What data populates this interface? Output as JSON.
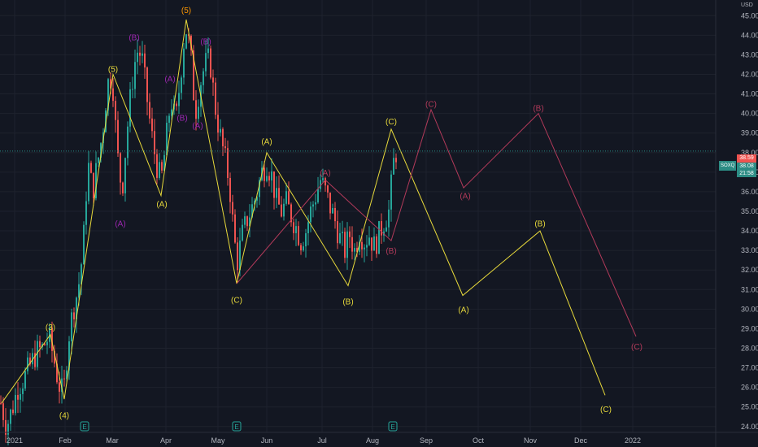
{
  "chart_data": {
    "type": "candlestick",
    "currency": "USD",
    "x_ticks": [
      "2021",
      "Feb",
      "Mar",
      "Apr",
      "May",
      "Jun",
      "Jul",
      "Aug",
      "Sep",
      "Oct",
      "Nov",
      "Dec",
      "2022"
    ],
    "y_ticks": [
      "45.00",
      "44.00",
      "43.00",
      "42.00",
      "41.00",
      "40.00",
      "39.00",
      "38.00",
      "37.00",
      "36.00",
      "35.00",
      "34.00",
      "33.00",
      "32.00",
      "31.00",
      "30.00",
      "29.00",
      "28.00",
      "27.00",
      "26.00",
      "25.00",
      "24.00"
    ],
    "ylim": [
      23.7,
      45.8
    ],
    "price_tags": {
      "symbol": "SOXQ",
      "last": "38.08",
      "high_close": "38.59",
      "countdown": "21:58",
      "symbol_text": "SOXQ"
    },
    "earnings_marks": [
      "E",
      "E",
      "E"
    ],
    "candles_path_points": [
      [
        1,
        25.2
      ],
      [
        8,
        24.0
      ],
      [
        15,
        24.9
      ],
      [
        22,
        26.0
      ],
      [
        30,
        26.5
      ],
      [
        38,
        27.2
      ],
      [
        45,
        27.8
      ],
      [
        52,
        28.0
      ],
      [
        60,
        28.6
      ],
      [
        66,
        27.5
      ],
      [
        72,
        26.2
      ],
      [
        78,
        25.6
      ],
      [
        84,
        28.5
      ],
      [
        90,
        30.0
      ],
      [
        96,
        31.0
      ],
      [
        102,
        33.0
      ],
      [
        108,
        37.5
      ],
      [
        114,
        36.0
      ],
      [
        120,
        37.5
      ],
      [
        126,
        39.0
      ],
      [
        132,
        41.5
      ],
      [
        138,
        42.0
      ],
      [
        144,
        38.0
      ],
      [
        150,
        36.0
      ],
      [
        156,
        39.0
      ],
      [
        162,
        41.5
      ],
      [
        168,
        43.2
      ],
      [
        174,
        43.0
      ],
      [
        180,
        41.0
      ],
      [
        186,
        39.0
      ],
      [
        192,
        37.5
      ],
      [
        198,
        36.5
      ],
      [
        204,
        38.5
      ],
      [
        210,
        40.8
      ],
      [
        216,
        39.5
      ],
      [
        222,
        42.0
      ],
      [
        228,
        44.5
      ],
      [
        234,
        43.2
      ],
      [
        240,
        40.0
      ],
      [
        246,
        41.5
      ],
      [
        252,
        42.5
      ],
      [
        258,
        42.8
      ],
      [
        264,
        40.5
      ],
      [
        270,
        39.0
      ],
      [
        276,
        37.8
      ],
      [
        282,
        36.5
      ],
      [
        288,
        33.5
      ],
      [
        292,
        32.5
      ],
      [
        298,
        33.8
      ],
      [
        304,
        34.6
      ],
      [
        310,
        35.2
      ],
      [
        316,
        36.0
      ],
      [
        322,
        37.0
      ],
      [
        328,
        37.5
      ],
      [
        334,
        36.8
      ],
      [
        340,
        35.5
      ],
      [
        346,
        35.0
      ],
      [
        352,
        35.4
      ],
      [
        358,
        34.8
      ],
      [
        364,
        34.2
      ],
      [
        370,
        33.5
      ],
      [
        376,
        34.0
      ],
      [
        382,
        35.0
      ],
      [
        388,
        35.8
      ],
      [
        394,
        36.6
      ],
      [
        400,
        36.0
      ],
      [
        406,
        35.2
      ],
      [
        412,
        34.5
      ],
      [
        418,
        33.6
      ],
      [
        424,
        33.0
      ],
      [
        430,
        33.8
      ],
      [
        436,
        33.0
      ],
      [
        442,
        34.0
      ],
      [
        448,
        33.5
      ],
      [
        454,
        33.8
      ],
      [
        460,
        33.2
      ],
      [
        466,
        33.8
      ],
      [
        472,
        34.5
      ],
      [
        478,
        35.0
      ],
      [
        484,
        37.5
      ],
      [
        488,
        38.2
      ]
    ],
    "wave_paths": [
      {
        "name": "primary-yellow",
        "color": "#e7d93b",
        "points": [
          [
            2,
            25.2
          ],
          [
            62,
            28.7
          ],
          [
            79,
            25.4
          ],
          [
            139,
            42.0
          ],
          [
            198,
            35.8
          ],
          [
            229,
            44.8
          ],
          [
            291,
            31.3
          ],
          [
            328,
            38.0
          ],
          [
            428,
            31.2
          ],
          [
            481,
            39.2
          ],
          [
            569,
            30.7
          ],
          [
            664,
            34.0
          ],
          [
            744,
            25.6
          ]
        ]
      },
      {
        "name": "secondary-red",
        "color": "#b23a5a",
        "points": [
          [
            291,
            31.3
          ],
          [
            400,
            36.6
          ],
          [
            481,
            33.5
          ],
          [
            530,
            40.2
          ],
          [
            570,
            36.2
          ],
          [
            662,
            40.0
          ],
          [
            782,
            28.6
          ]
        ]
      }
    ],
    "wave_labels": [
      {
        "text": "(3)",
        "color": "#e7d93b",
        "x": 62,
        "y": 29.1
      },
      {
        "text": "(4)",
        "color": "#e7d93b",
        "x": 79,
        "y": 24.6
      },
      {
        "text": "(5)",
        "color": "#e7d93b",
        "x": 139,
        "y": 42.3
      },
      {
        "text": "(A)",
        "color": "#e7d93b",
        "x": 199,
        "y": 35.4
      },
      {
        "text": "(B)",
        "color": "#9c27b0",
        "x": 165,
        "y": 43.9
      },
      {
        "text": "(A)",
        "color": "#9c27b0",
        "x": 148,
        "y": 34.4
      },
      {
        "text": "(A)",
        "color": "#9c27b0",
        "x": 209,
        "y": 41.8
      },
      {
        "text": "(B)",
        "color": "#9c27b0",
        "x": 224,
        "y": 39.8
      },
      {
        "text": "(A)",
        "color": "#9c27b0",
        "x": 243,
        "y": 39.4
      },
      {
        "text": "(B)",
        "color": "#9c27b0",
        "x": 253,
        "y": 43.7
      },
      {
        "text": "(5)",
        "color": "#ff9800",
        "x": 229,
        "y": 45.3
      },
      {
        "text": "(C)",
        "color": "#e7d93b",
        "x": 291,
        "y": 30.5
      },
      {
        "text": "(A)",
        "color": "#e7d93b",
        "x": 328,
        "y": 38.6
      },
      {
        "text": "(A)",
        "color": "#b23a5a",
        "x": 400,
        "y": 37.0
      },
      {
        "text": "(B)",
        "color": "#e7d93b",
        "x": 428,
        "y": 30.4
      },
      {
        "text": "(B)",
        "color": "#b23a5a",
        "x": 481,
        "y": 33.0
      },
      {
        "text": "(C)",
        "color": "#e7d93b",
        "x": 481,
        "y": 39.6
      },
      {
        "text": "(C)",
        "color": "#b23a5a",
        "x": 530,
        "y": 40.5
      },
      {
        "text": "(A)",
        "color": "#b23a5a",
        "x": 572,
        "y": 35.8
      },
      {
        "text": "(A)",
        "color": "#e7d93b",
        "x": 570,
        "y": 30.0
      },
      {
        "text": "(B)",
        "color": "#b23a5a",
        "x": 662,
        "y": 40.3
      },
      {
        "text": "(B)",
        "color": "#e7d93b",
        "x": 664,
        "y": 34.4
      },
      {
        "text": "(C)",
        "color": "#b23a5a",
        "x": 783,
        "y": 28.1
      },
      {
        "text": "(C)",
        "color": "#e7d93b",
        "x": 745,
        "y": 24.9
      }
    ],
    "colors": {
      "background": "#131722",
      "up": "#26a69a",
      "down": "#ef5350",
      "grid": "#1e222d",
      "primary": "#e7d93b",
      "secondary": "#b23a5a",
      "last_line": "#2c8c84"
    }
  }
}
